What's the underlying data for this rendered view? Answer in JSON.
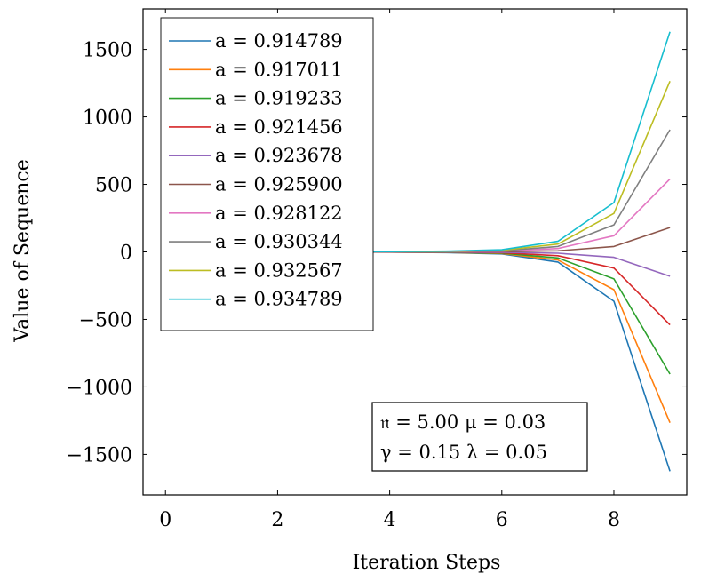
{
  "chart_data": {
    "type": "line",
    "xlabel": "Iteration Steps",
    "ylabel": "Value of Sequence",
    "xlim": [
      -0.4,
      9.3
    ],
    "ylim": [
      -1800,
      1800
    ],
    "xticks": [
      0,
      2,
      4,
      6,
      8
    ],
    "yticks": [
      -1500,
      -1000,
      -500,
      0,
      500,
      1000,
      1500
    ],
    "xtick_labels": [
      "0",
      "2",
      "4",
      "6",
      "8"
    ],
    "ytick_labels": [
      "−1500",
      "−1000",
      "−500",
      "0",
      "500",
      "1000",
      "1500"
    ],
    "grid": false,
    "legend_position": "top-left",
    "x": [
      0,
      1,
      2,
      3,
      4,
      5,
      6,
      7,
      8,
      9
    ],
    "series": [
      {
        "name": "a = 0.914789",
        "color": "#1f77b4",
        "values": [
          0,
          0,
          0,
          -1,
          -2,
          -5,
          -15,
          -75,
          -365,
          -1625
        ]
      },
      {
        "name": "a = 0.917011",
        "color": "#ff7f0e",
        "values": [
          0,
          0,
          0,
          -1,
          -2,
          -4,
          -12,
          -60,
          -280,
          -1265
        ]
      },
      {
        "name": "a = 0.919233",
        "color": "#2ca02c",
        "values": [
          0,
          0,
          0,
          -1,
          -1,
          -3,
          -9,
          -45,
          -200,
          -905
        ]
      },
      {
        "name": "a = 0.921456",
        "color": "#d62728",
        "values": [
          0,
          0,
          0,
          0,
          -1,
          -2,
          -6,
          -28,
          -120,
          -540
        ]
      },
      {
        "name": "a = 0.923678",
        "color": "#9467bd",
        "values": [
          0,
          0,
          0,
          0,
          0,
          -1,
          -3,
          -10,
          -40,
          -180
        ]
      },
      {
        "name": "a = 0.925900",
        "color": "#8c564b",
        "values": [
          0,
          0,
          0,
          0,
          0,
          1,
          2,
          8,
          40,
          180
        ]
      },
      {
        "name": "a = 0.928122",
        "color": "#e377c2",
        "values": [
          0,
          0,
          0,
          0,
          1,
          2,
          5,
          25,
          120,
          540
        ]
      },
      {
        "name": "a = 0.930344",
        "color": "#7f7f7f",
        "values": [
          0,
          0,
          0,
          1,
          1,
          3,
          8,
          40,
          200,
          905
        ]
      },
      {
        "name": "a = 0.932567",
        "color": "#bcbd22",
        "values": [
          0,
          0,
          0,
          1,
          2,
          4,
          12,
          58,
          285,
          1265
        ]
      },
      {
        "name": "a = 0.934789",
        "color": "#17becf",
        "values": [
          0,
          0,
          0,
          1,
          2,
          5,
          16,
          78,
          365,
          1630
        ]
      }
    ],
    "annotation": {
      "line1": "𝔫 = 5.00 μ = 0.03",
      "line2": "γ = 0.15 λ = 0.05",
      "position": "bottom-right"
    }
  }
}
